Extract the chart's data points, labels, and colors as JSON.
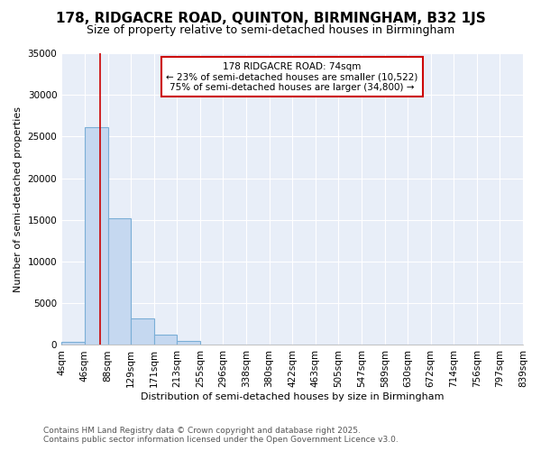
{
  "title": "178, RIDGACRE ROAD, QUINTON, BIRMINGHAM, B32 1JS",
  "subtitle": "Size of property relative to semi-detached houses in Birmingham",
  "xlabel": "Distribution of semi-detached houses by size in Birmingham",
  "ylabel": "Number of semi-detached properties",
  "footer1": "Contains HM Land Registry data © Crown copyright and database right 2025.",
  "footer2": "Contains public sector information licensed under the Open Government Licence v3.0.",
  "bin_edges": [
    4,
    46,
    88,
    129,
    171,
    213,
    255,
    296,
    338,
    380,
    422,
    463,
    505,
    547,
    589,
    630,
    672,
    714,
    756,
    797,
    839
  ],
  "bin_values": [
    400,
    26100,
    15200,
    3200,
    1200,
    450,
    50,
    0,
    0,
    0,
    0,
    0,
    0,
    0,
    0,
    0,
    0,
    0,
    0,
    0
  ],
  "bar_color": "#c5d8f0",
  "bar_edge_color": "#7aaed6",
  "property_size": 74,
  "red_line_color": "#cc0000",
  "annotation_box_facecolor": "#ffffff",
  "annotation_border_color": "#cc0000",
  "annotation_text1": "178 RIDGACRE ROAD: 74sqm",
  "annotation_text2": "← 23% of semi-detached houses are smaller (10,522)",
  "annotation_text3": "75% of semi-detached houses are larger (34,800) →",
  "ylim": [
    0,
    35000
  ],
  "yticks": [
    0,
    5000,
    10000,
    15000,
    20000,
    25000,
    30000,
    35000
  ],
  "fig_background": "#ffffff",
  "axes_background": "#e8eef8",
  "grid_color": "#ffffff",
  "title_fontsize": 11,
  "subtitle_fontsize": 9,
  "axis_label_fontsize": 8,
  "tick_label_fontsize": 7.5,
  "footer_fontsize": 6.5
}
